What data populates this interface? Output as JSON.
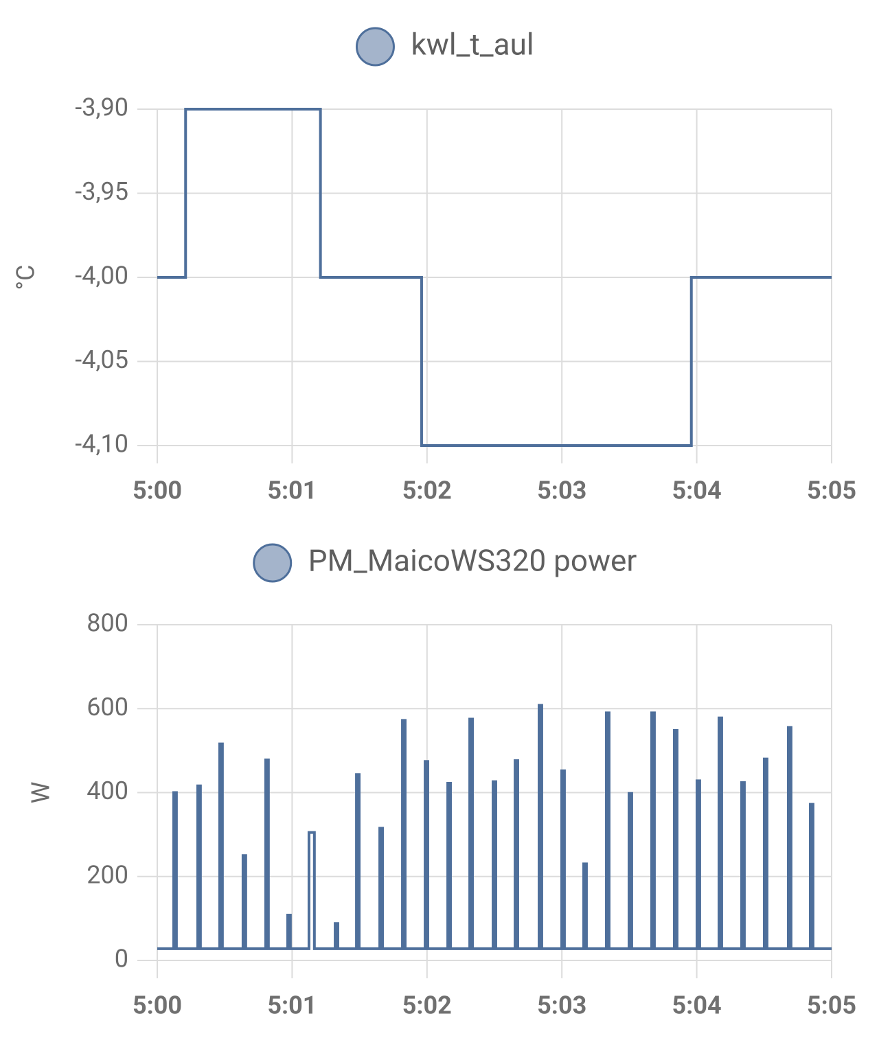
{
  "chart_data": [
    {
      "type": "step",
      "y_label": "°C",
      "x": [
        0,
        0.21,
        1.21,
        1.96,
        3.96,
        5
      ],
      "series": [
        {
          "name": "kwl_t_aul",
          "color": "#4e6f9b",
          "values": [
            -4.0,
            -3.9,
            -4.0,
            -4.1,
            -4.0,
            -4.0
          ]
        }
      ],
      "xlim": [
        0,
        5
      ],
      "xticks": [
        {
          "value": 0,
          "label": "5:00"
        },
        {
          "value": 1,
          "label": "5:01"
        },
        {
          "value": 2,
          "label": "5:02"
        },
        {
          "value": 3,
          "label": "5:03"
        },
        {
          "value": 4,
          "label": "5:04"
        },
        {
          "value": 5,
          "label": "5:05"
        }
      ],
      "ylim": [
        -4.1,
        -3.9
      ],
      "yticks": [
        {
          "value": -3.9,
          "label": "-3,90"
        },
        {
          "value": -3.95,
          "label": "-3,95"
        },
        {
          "value": -4.0,
          "label": "-4,00"
        },
        {
          "value": -4.05,
          "label": "-4,05"
        },
        {
          "value": -4.1,
          "label": "-4,10"
        }
      ],
      "grid": true
    },
    {
      "type": "step",
      "y_label": "W",
      "x": [
        0,
        0.122,
        0.142,
        0.3,
        0.32,
        0.463,
        0.483,
        0.636,
        0.656,
        0.804,
        0.824,
        0.967,
        0.987,
        1.125,
        1.165,
        1.319,
        1.339,
        1.477,
        1.497,
        1.65,
        1.67,
        1.818,
        1.838,
        1.986,
        2.006,
        2.154,
        2.174,
        2.317,
        2.337,
        2.49,
        2.51,
        2.653,
        2.673,
        2.831,
        2.851,
        2.999,
        3.019,
        3.162,
        3.182,
        3.33,
        3.35,
        3.498,
        3.518,
        3.666,
        3.686,
        3.834,
        3.854,
        4.002,
        4.022,
        4.165,
        4.185,
        4.333,
        4.353,
        4.501,
        4.521,
        4.679,
        4.699,
        4.842,
        4.862,
        5
      ],
      "series": [
        {
          "name": "PM_MaicoWS320 power",
          "color": "#4e6f9b",
          "values": [
            28,
            400,
            28,
            416,
            28,
            516,
            28,
            250,
            28,
            478,
            28,
            108,
            28,
            305,
            28,
            88,
            28,
            443,
            28,
            315,
            28,
            572,
            28,
            474,
            28,
            422,
            28,
            575,
            28,
            426,
            28,
            476,
            28,
            608,
            28,
            452,
            28,
            230,
            28,
            590,
            28,
            398,
            28,
            590,
            28,
            548,
            28,
            428,
            28,
            578,
            28,
            424,
            28,
            480,
            28,
            555,
            28,
            372,
            28,
            28
          ]
        }
      ],
      "xlim": [
        0,
        5
      ],
      "xticks": [
        {
          "value": 0,
          "label": "5:00"
        },
        {
          "value": 1,
          "label": "5:01"
        },
        {
          "value": 2,
          "label": "5:02"
        },
        {
          "value": 3,
          "label": "5:03"
        },
        {
          "value": 4,
          "label": "5:04"
        },
        {
          "value": 5,
          "label": "5:05"
        }
      ],
      "ylim": [
        0,
        800
      ],
      "yticks": [
        0,
        200,
        400,
        600,
        800
      ],
      "grid": true
    }
  ]
}
